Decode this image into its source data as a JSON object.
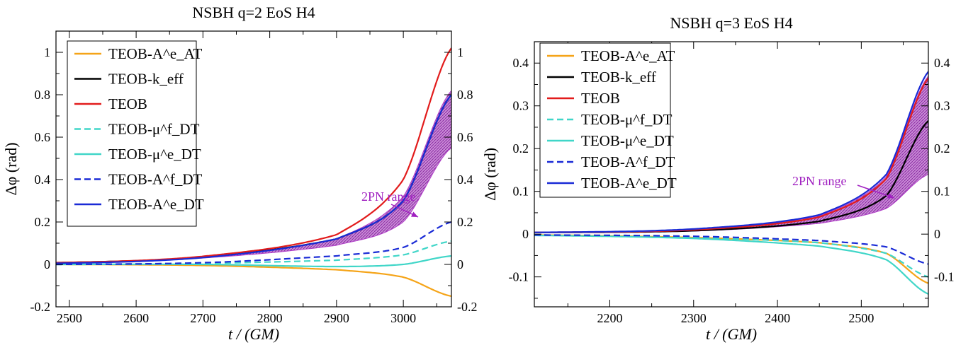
{
  "chart_data": [
    {
      "type": "line",
      "title": "NSBH q=2 EoS H4",
      "xlabel": "t / (GM)",
      "ylabel": "Δφ (rad)",
      "xlim": [
        2480,
        3072
      ],
      "ylim": [
        -0.2,
        1.1
      ],
      "xticks": [
        2500,
        2600,
        2700,
        2800,
        2900,
        3000
      ],
      "xtick_labels": [
        "2500",
        "2600",
        "2700",
        "2800",
        "2900",
        "3000"
      ],
      "yticks": [
        -0.2,
        0,
        0.2,
        0.4,
        0.6,
        0.8,
        1
      ],
      "ytick_labels": [
        "-0.2",
        "0",
        "0.2",
        "0.4",
        "0.6",
        "0.8",
        "1"
      ],
      "grid": false,
      "legend_position": "top-left",
      "annotation": "2PN range",
      "series": [
        {
          "name": "TEOB-A^e_AT",
          "color": "#f5a418",
          "dash": "solid",
          "x": [
            2480,
            2700,
            2900,
            3000,
            3072
          ],
          "y": [
            0.0,
            -0.005,
            -0.025,
            -0.06,
            -0.15
          ]
        },
        {
          "name": "TEOB-k_eff",
          "color": "#000000",
          "dash": "solid",
          "x": [
            2480,
            2700,
            2900,
            3000,
            3072
          ],
          "y": [
            0.008,
            0.035,
            0.12,
            0.3,
            0.8
          ]
        },
        {
          "name": "TEOB",
          "color": "#e21c1c",
          "dash": "solid",
          "x": [
            2480,
            2700,
            2900,
            3000,
            3072
          ],
          "y": [
            0.008,
            0.038,
            0.14,
            0.4,
            1.02
          ]
        },
        {
          "name": "TEOB-μ^f_DT",
          "color": "#40d6c8",
          "dash": "dashed",
          "x": [
            2480,
            2700,
            2900,
            3000,
            3072
          ],
          "y": [
            0.0,
            0.005,
            0.02,
            0.045,
            0.11
          ]
        },
        {
          "name": "TEOB-μ^e_DT",
          "color": "#40d6c8",
          "dash": "solid",
          "x": [
            2480,
            2700,
            2900,
            3000,
            3072
          ],
          "y": [
            0.0,
            0.0,
            -0.01,
            0.0,
            0.04
          ]
        },
        {
          "name": "TEOB-A^f_DT",
          "color": "#1a2bd6",
          "dash": "dashed",
          "x": [
            2480,
            2700,
            2900,
            3000,
            3072
          ],
          "y": [
            0.0,
            0.008,
            0.04,
            0.08,
            0.2
          ]
        },
        {
          "name": "TEOB-A^e_DT",
          "color": "#1a2bd6",
          "dash": "solid",
          "x": [
            2480,
            2700,
            2900,
            3000,
            3072
          ],
          "y": [
            0.005,
            0.032,
            0.12,
            0.3,
            0.8
          ]
        }
      ],
      "band": {
        "name": "2PN range",
        "color": "#b03dc8",
        "x": [
          2480,
          2700,
          2900,
          3000,
          3072
        ],
        "upper": [
          0.008,
          0.033,
          0.12,
          0.32,
          0.82
        ],
        "lower": [
          0.008,
          0.03,
          0.09,
          0.2,
          0.55
        ]
      }
    },
    {
      "type": "line",
      "title": "NSBH q=3 EoS H4",
      "xlabel": "t / (GM)",
      "ylabel": "Δφ (rad)",
      "xlim": [
        2110,
        2580
      ],
      "ylim": [
        -0.17,
        0.45
      ],
      "xticks": [
        2200,
        2300,
        2400,
        2500
      ],
      "xtick_labels": [
        "2200",
        "2300",
        "2400",
        "2500"
      ],
      "yticks": [
        -0.1,
        0,
        0.1,
        0.2,
        0.3,
        0.4
      ],
      "ytick_labels": [
        "-0.1",
        "0",
        "0.1",
        "0.2",
        "0.3",
        "0.4"
      ],
      "grid": false,
      "legend_position": "top-left",
      "annotation": "2PN range",
      "series": [
        {
          "name": "TEOB-A^e_AT",
          "color": "#f5a418",
          "dash": "solid",
          "x": [
            2110,
            2300,
            2450,
            2530,
            2580
          ],
          "y": [
            -0.002,
            -0.008,
            -0.02,
            -0.045,
            -0.115
          ]
        },
        {
          "name": "TEOB-k_eff",
          "color": "#000000",
          "dash": "solid",
          "x": [
            2110,
            2300,
            2450,
            2530,
            2580
          ],
          "y": [
            0.004,
            0.008,
            0.03,
            0.09,
            0.265
          ]
        },
        {
          "name": "TEOB",
          "color": "#e21c1c",
          "dash": "solid",
          "x": [
            2110,
            2300,
            2450,
            2530,
            2580
          ],
          "y": [
            0.004,
            0.01,
            0.04,
            0.13,
            0.365
          ]
        },
        {
          "name": "TEOB-μ^f_DT",
          "color": "#40d6c8",
          "dash": "dashed",
          "x": [
            2110,
            2300,
            2450,
            2530,
            2580
          ],
          "y": [
            -0.002,
            -0.008,
            -0.02,
            -0.045,
            -0.1
          ]
        },
        {
          "name": "TEOB-μ^e_DT",
          "color": "#40d6c8",
          "dash": "solid",
          "x": [
            2110,
            2300,
            2450,
            2530,
            2580
          ],
          "y": [
            -0.003,
            -0.01,
            -0.028,
            -0.06,
            -0.14
          ]
        },
        {
          "name": "TEOB-A^f_DT",
          "color": "#1a2bd6",
          "dash": "dashed",
          "x": [
            2110,
            2300,
            2450,
            2530,
            2580
          ],
          "y": [
            -0.002,
            -0.005,
            -0.015,
            -0.03,
            -0.07
          ]
        },
        {
          "name": "TEOB-A^e_DT",
          "color": "#1a2bd6",
          "dash": "solid",
          "x": [
            2110,
            2300,
            2450,
            2530,
            2580
          ],
          "y": [
            0.004,
            0.012,
            0.045,
            0.14,
            0.38
          ]
        }
      ],
      "band": {
        "name": "2PN range",
        "color": "#b03dc8",
        "x": [
          2110,
          2300,
          2450,
          2530,
          2580
        ],
        "upper": [
          0.004,
          0.011,
          0.043,
          0.135,
          0.37
        ],
        "lower": [
          0.004,
          0.007,
          0.025,
          0.06,
          0.14
        ]
      }
    }
  ]
}
